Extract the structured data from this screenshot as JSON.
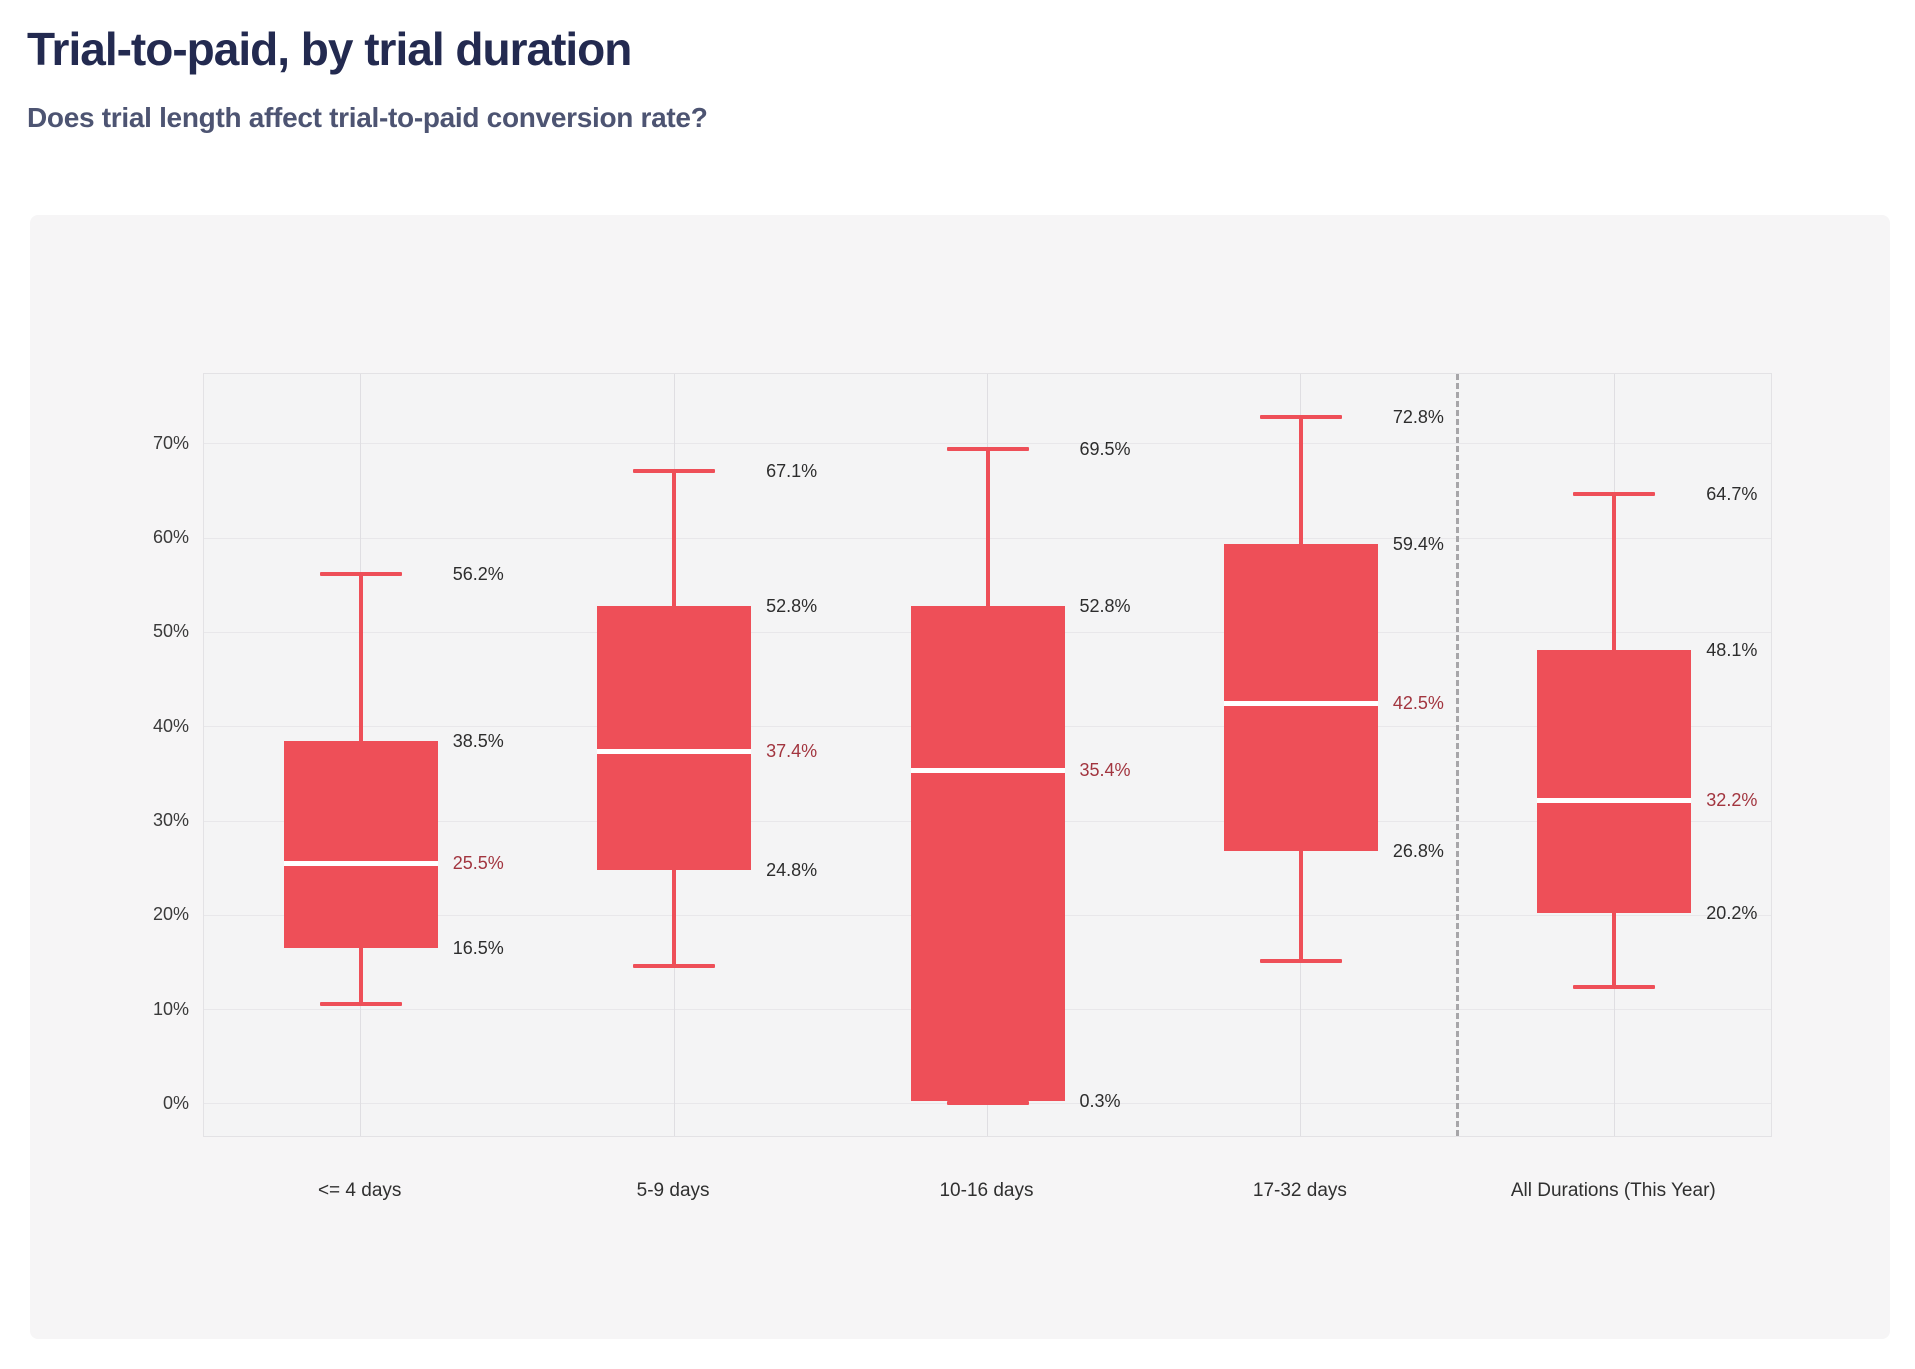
{
  "page": {
    "title": "Trial-to-paid, by trial duration",
    "subtitle": "Does trial length affect trial-to-paid conversion rate?"
  },
  "chart_data": {
    "type": "boxplot",
    "title": "Trial-to-paid, by trial duration",
    "subtitle": "Does trial length affect trial-to-paid conversion rate?",
    "xlabel": "",
    "ylabel": "",
    "ylim": [
      -3.4,
      77.4
    ],
    "grid": true,
    "legend": "none",
    "y_ticks": [
      0,
      10,
      20,
      30,
      40,
      50,
      60,
      70
    ],
    "y_tick_suffix": "%",
    "categories": [
      "<= 4 days",
      "5-9 days",
      "10-16 days",
      "17-32 days",
      "All Durations (This Year)"
    ],
    "separator": {
      "after_category_index": 3,
      "position_fraction": 0.8,
      "style": "dashed"
    },
    "series": [
      {
        "category": "<= 4 days",
        "min": 10.6,
        "q1": 16.5,
        "median": 25.5,
        "q3": 38.5,
        "max": 56.2,
        "labels": [
          {
            "at": 56.2,
            "text": "56.2%",
            "style": "default"
          },
          {
            "at": 38.5,
            "text": "38.5%",
            "style": "default"
          },
          {
            "at": 25.5,
            "text": "25.5%",
            "style": "median"
          },
          {
            "at": 16.5,
            "text": "16.5%",
            "style": "default"
          }
        ]
      },
      {
        "category": "5-9 days",
        "min": 14.6,
        "q1": 24.8,
        "median": 37.4,
        "q3": 52.8,
        "max": 67.1,
        "labels": [
          {
            "at": 67.1,
            "text": "67.1%",
            "style": "default"
          },
          {
            "at": 52.8,
            "text": "52.8%",
            "style": "default"
          },
          {
            "at": 37.4,
            "text": "37.4%",
            "style": "median"
          },
          {
            "at": 24.8,
            "text": "24.8%",
            "style": "default"
          }
        ]
      },
      {
        "category": "10-16 days",
        "min": 0.1,
        "q1": 0.3,
        "median": 35.4,
        "q3": 52.8,
        "max": 69.5,
        "labels": [
          {
            "at": 69.5,
            "text": "69.5%",
            "style": "default"
          },
          {
            "at": 52.8,
            "text": "52.8%",
            "style": "default"
          },
          {
            "at": 35.4,
            "text": "35.4%",
            "style": "median"
          },
          {
            "at": 0.3,
            "text": "0.3%",
            "style": "default"
          }
        ]
      },
      {
        "category": "17-32 days",
        "min": 15.2,
        "q1": 26.8,
        "median": 42.5,
        "q3": 59.4,
        "max": 72.8,
        "labels": [
          {
            "at": 72.8,
            "text": "72.8%",
            "style": "default"
          },
          {
            "at": 59.4,
            "text": "59.4%",
            "style": "default"
          },
          {
            "at": 42.5,
            "text": "42.5%",
            "style": "median"
          },
          {
            "at": 26.8,
            "text": "26.8%",
            "style": "default"
          }
        ]
      },
      {
        "category": "All Durations (This Year)",
        "min": 12.4,
        "q1": 20.2,
        "median": 32.2,
        "q3": 48.1,
        "max": 64.7,
        "labels": [
          {
            "at": 64.7,
            "text": "64.7%",
            "style": "default"
          },
          {
            "at": 48.1,
            "text": "48.1%",
            "style": "default"
          },
          {
            "at": 32.2,
            "text": "32.2%",
            "style": "median"
          },
          {
            "at": 20.2,
            "text": "20.2%",
            "style": "default"
          }
        ]
      }
    ],
    "colors": {
      "box_fill": "#ee4f58",
      "whisker": "#ee4f58",
      "median_line": "#ffffff",
      "value_label": "#2d2d2d",
      "median_label": "#a2353f",
      "title": "#232a50",
      "subtitle": "#4d5472",
      "card_background": "#f6f5f6",
      "plot_background": "#f4f4f5",
      "gridline": "#e8e7ea",
      "vertical_gridline": "#dfdee2",
      "separator_line": "#a7a6a9",
      "tick_text": "#3a3a3a"
    }
  }
}
